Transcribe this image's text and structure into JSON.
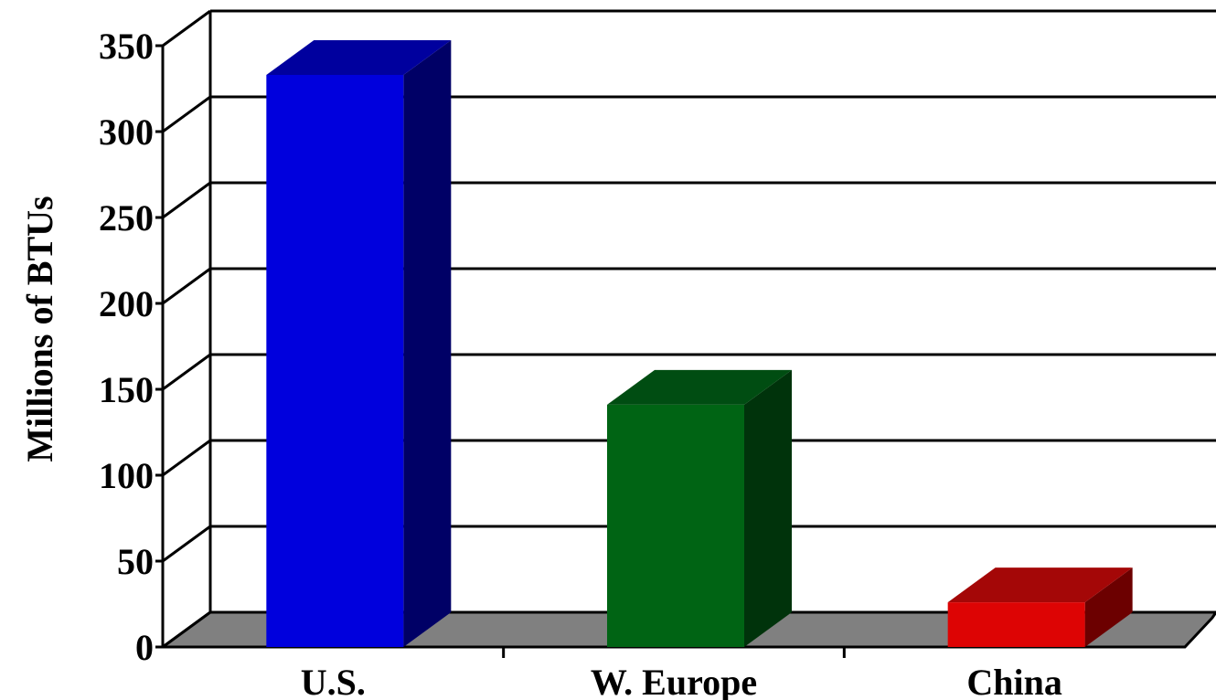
{
  "chart_data": {
    "type": "bar",
    "style": "3d",
    "categories": [
      "U.S.",
      "W. Europe",
      "China"
    ],
    "values": [
      333,
      141,
      26
    ],
    "colors": {
      "U.S.": {
        "front": "#0000dd",
        "side": "#000066",
        "top": "#00009e"
      },
      "W. Europe": {
        "front": "#006414",
        "side": "#00330b",
        "top": "#004d12"
      },
      "China": {
        "front": "#dd0404",
        "side": "#6c0000",
        "top": "#a40707"
      }
    },
    "floor_color": "#808080",
    "ylabel": "Millions of BTUs",
    "xlabel": "",
    "title": "",
    "ylim": [
      0,
      350
    ],
    "yticks": [
      0,
      50,
      100,
      150,
      200,
      250,
      300,
      350
    ],
    "grid": true
  }
}
